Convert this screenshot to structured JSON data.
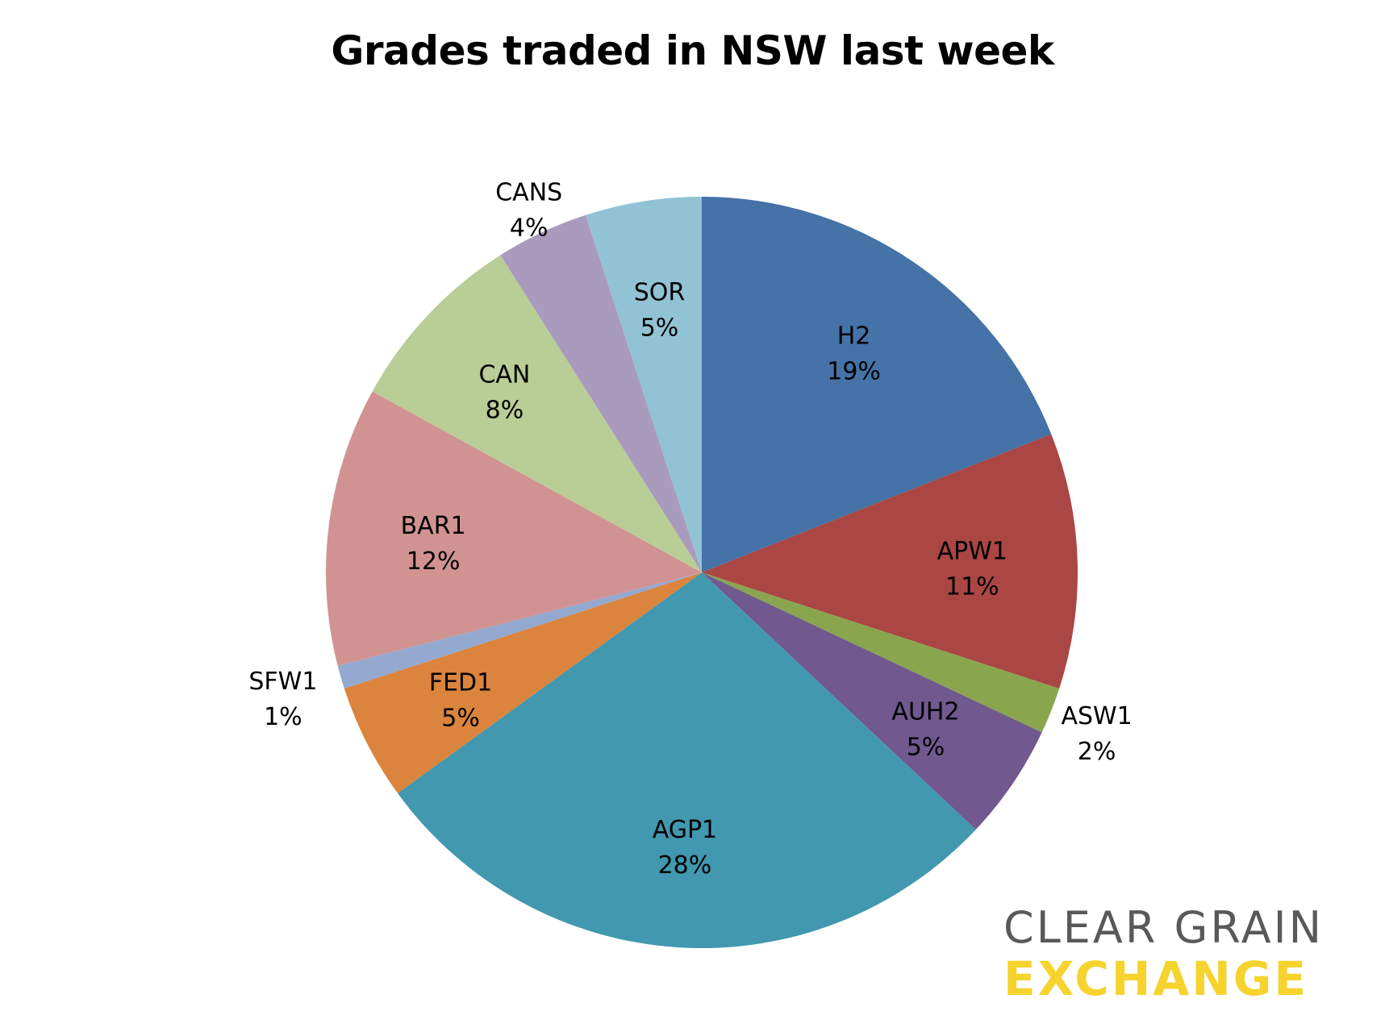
{
  "chart_data": {
    "type": "pie",
    "title": "Grades traded in NSW last week",
    "slices": [
      {
        "label": "H2",
        "value": 19,
        "value_label": "19%",
        "color": "#4572a7"
      },
      {
        "label": "APW1",
        "value": 11,
        "value_label": "11%",
        "color": "#aa4643"
      },
      {
        "label": "ASW1",
        "value": 2,
        "value_label": "2%",
        "color": "#89a54e"
      },
      {
        "label": "AUH2",
        "value": 5,
        "value_label": "5%",
        "color": "#71588f"
      },
      {
        "label": "AGP1",
        "value": 28,
        "value_label": "28%",
        "color": "#4198af"
      },
      {
        "label": "FED1",
        "value": 5,
        "value_label": "5%",
        "color": "#db843d"
      },
      {
        "label": "SFW1",
        "value": 1,
        "value_label": "1%",
        "color": "#93a9cf"
      },
      {
        "label": "BAR1",
        "value": 12,
        "value_label": "12%",
        "color": "#d19392"
      },
      {
        "label": "CAN",
        "value": 8,
        "value_label": "8%",
        "color": "#b9cd96"
      },
      {
        "label": "CANS",
        "value": 4,
        "value_label": "4%",
        "color": "#a99bbd"
      },
      {
        "label": "SOR",
        "value": 5,
        "value_label": "5%",
        "color": "#92c3d5"
      }
    ],
    "legend": "none",
    "data_labels": "category name and percentage"
  },
  "logo": {
    "line1": "CLEAR GRAIN",
    "line2": "EXCHANGE",
    "colors": {
      "line1": "#58595b",
      "line2": "#f6d32d"
    }
  }
}
